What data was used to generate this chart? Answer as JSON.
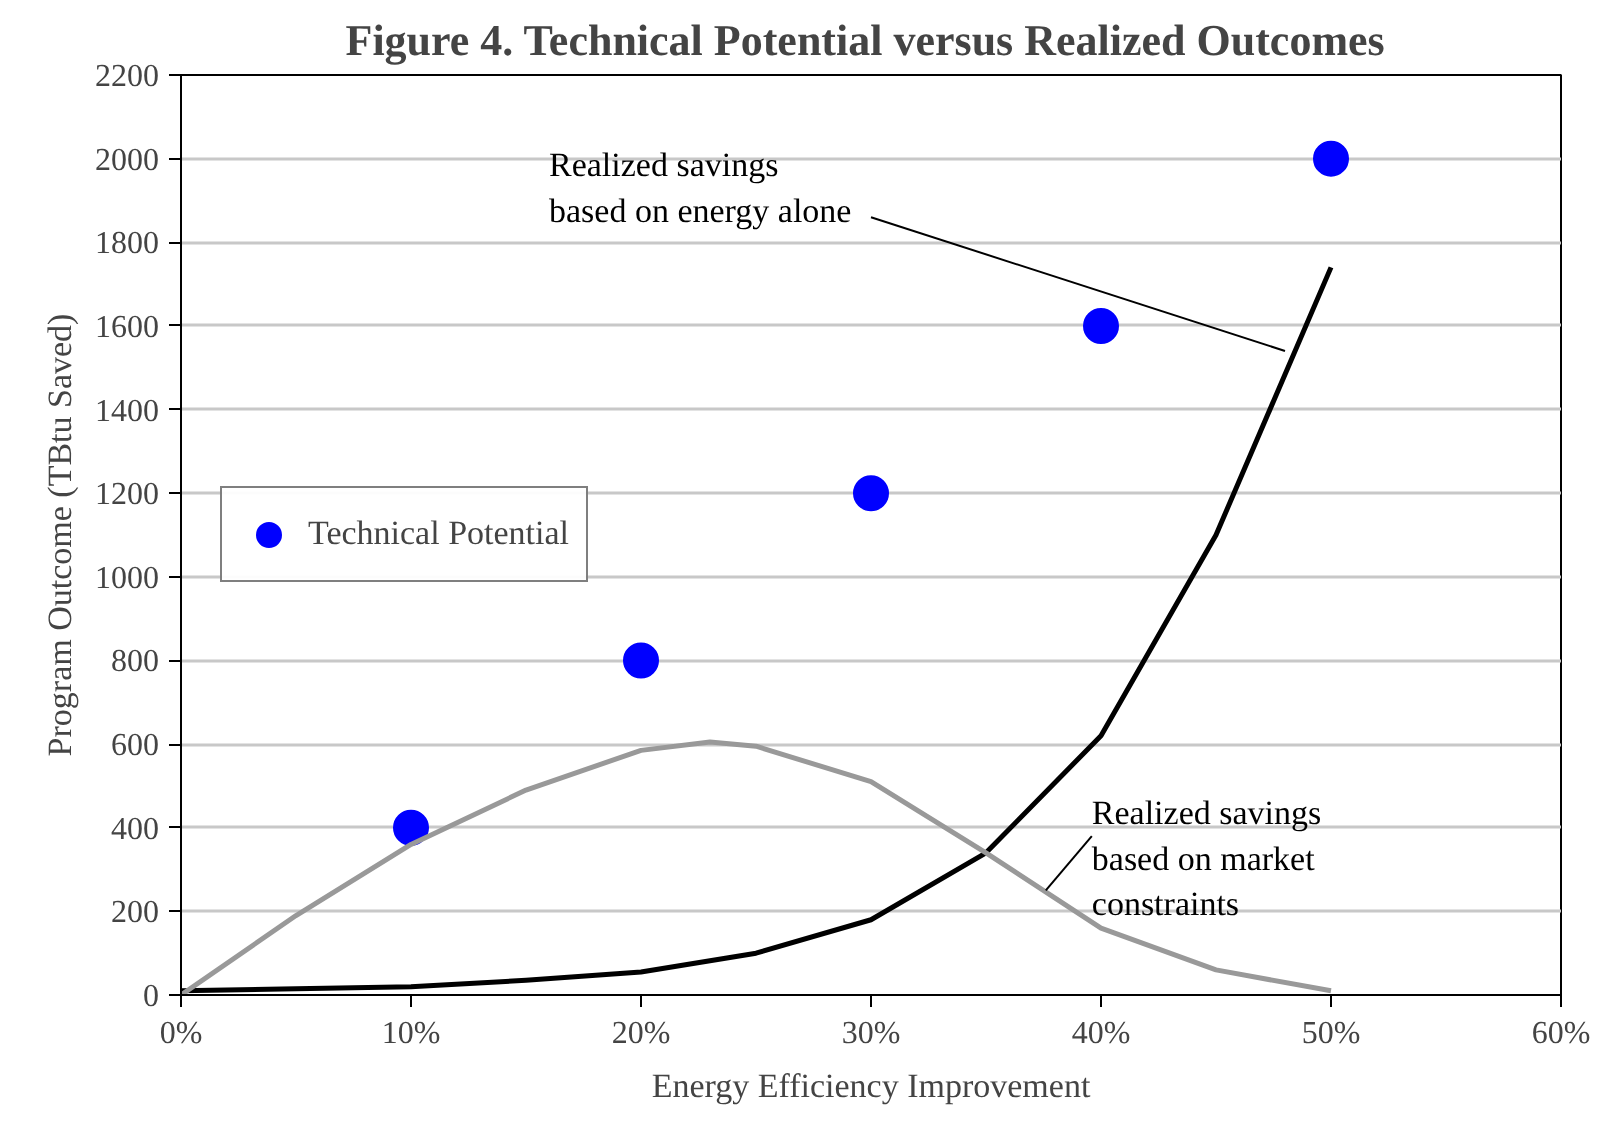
{
  "chart_data": {
    "type": "scatter",
    "title": "Figure 4.  Technical Potential versus Realized Outcomes",
    "xlabel": "Energy Efficiency Improvement",
    "ylabel": "Program Outcome (TBtu Saved)",
    "series": [
      {
        "name": "Technical Potential",
        "color": "#0000ff",
        "marker": "circle",
        "x": [
          10,
          20,
          30,
          40,
          50
        ],
        "values": [
          400,
          800,
          1200,
          1600,
          2000
        ]
      },
      {
        "type": "line",
        "color": "#000000",
        "marker": "none",
        "x": [
          0,
          5,
          10,
          15,
          20,
          25,
          30,
          35,
          40,
          45,
          50
        ],
        "values": [
          10,
          15,
          20,
          35,
          55,
          100,
          180,
          340,
          620,
          1100,
          1740
        ]
      },
      {
        "type": "line",
        "color": "#999999",
        "marker": "none",
        "x": [
          0,
          5,
          10,
          15,
          20,
          23,
          25,
          30,
          35,
          40,
          45,
          50
        ],
        "values": [
          0,
          190,
          360,
          490,
          585,
          605,
          595,
          510,
          340,
          160,
          60,
          10
        ]
      }
    ],
    "annotations": [
      {
        "text": "Realized savings\nbased on energy alone",
        "x": 48,
        "y": 1540
      },
      {
        "text": "Realized savings\nbased on market\nconstraints",
        "x": 37.6,
        "y": 250
      }
    ],
    "xlim": [
      0,
      60
    ],
    "ylim": [
      0,
      2200
    ],
    "xticks": [
      {
        "value": 0,
        "label": "0%"
      },
      {
        "value": 10,
        "label": "10%"
      },
      {
        "value": 20,
        "label": "20%"
      },
      {
        "value": 30,
        "label": "30%"
      },
      {
        "value": 40,
        "label": "40%"
      },
      {
        "value": 50,
        "label": "50%"
      },
      {
        "value": 60,
        "label": "60%"
      }
    ],
    "yticks": [
      0,
      200,
      400,
      600,
      800,
      1000,
      1200,
      1400,
      1600,
      1800,
      2000,
      2200
    ],
    "grid": "y",
    "legend": "left"
  }
}
